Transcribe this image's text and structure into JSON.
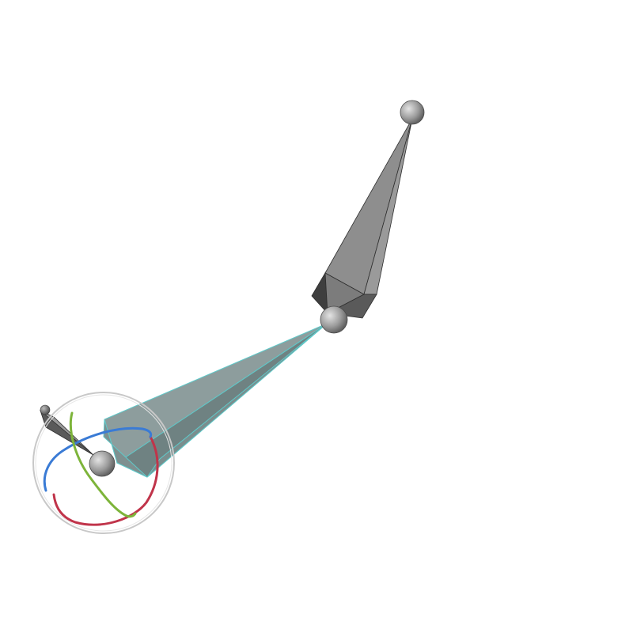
{
  "viewport": {
    "background": "#ffffff"
  },
  "rig": {
    "bones": [
      {
        "name": "upper-bone",
        "selected": false,
        "color": "#8c8c8c"
      },
      {
        "name": "lower-bone",
        "selected": true,
        "color": "#8a9a9a",
        "highlight": "#5fc9c9"
      },
      {
        "name": "end-bone",
        "selected": false,
        "color": "#7a7a7a"
      }
    ],
    "joints": [
      {
        "name": "top-joint",
        "color": "#9a9a9a"
      },
      {
        "name": "middle-joint",
        "color": "#9a9a9a"
      },
      {
        "name": "end-joint",
        "color": "#9a9a9a"
      },
      {
        "name": "tip-joint",
        "color": "#7a7a7a"
      }
    ]
  },
  "rotate_gizmo": {
    "active_joint": "end-joint",
    "outer_ring_color": "#c8c8c8",
    "axes": [
      {
        "axis": "x",
        "color": "#c0344a"
      },
      {
        "axis": "y",
        "color": "#7db43a"
      },
      {
        "axis": "z",
        "color": "#3a7bd5"
      }
    ]
  }
}
